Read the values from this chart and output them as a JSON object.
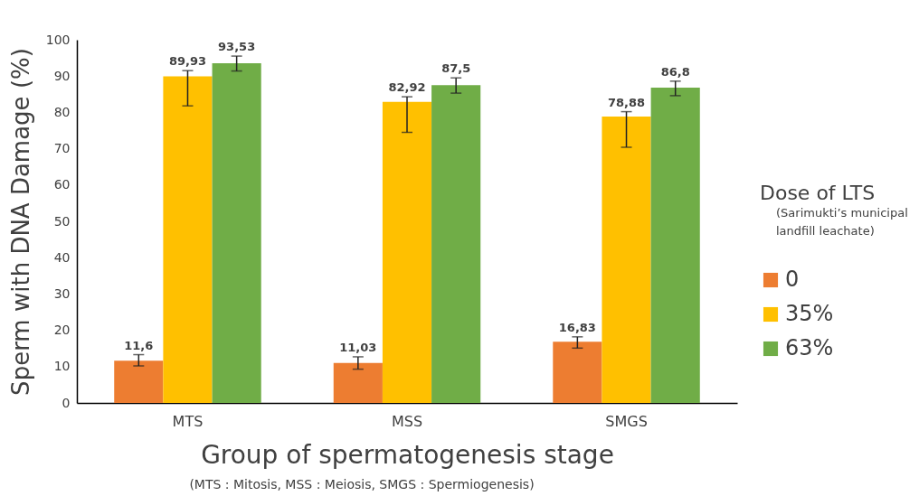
{
  "chart_data": {
    "type": "bar",
    "xlabel": "Group of spermatogenesis stage",
    "ylabel": "Sperm with DNA Damage (%)",
    "categories": [
      "MTS",
      "MSS",
      "SMGS"
    ],
    "series": [
      {
        "name": "0",
        "color": "#ed7d31",
        "values": [
          11.6,
          11.03,
          16.83
        ],
        "value_labels": [
          "11,6",
          "11,03",
          "16,83"
        ],
        "errors": [
          [
            10.2,
            13.3
          ],
          [
            9.3,
            12.7
          ],
          [
            15.1,
            18.2
          ]
        ]
      },
      {
        "name": "35%",
        "color": "#ffc000",
        "values": [
          89.93,
          82.92,
          78.88
        ],
        "value_labels": [
          "89,93",
          "82,92",
          "78,88"
        ],
        "errors": [
          [
            81.8,
            91.5
          ],
          [
            74.5,
            84.3
          ],
          [
            70.4,
            80.2
          ]
        ]
      },
      {
        "name": "63%",
        "color": "#70ad47",
        "values": [
          93.53,
          87.5,
          86.8
        ],
        "value_labels": [
          "93,53",
          "87,5",
          "86,8"
        ],
        "errors": [
          [
            91.4,
            95.5
          ],
          [
            85.3,
            89.5
          ],
          [
            84.6,
            88.6
          ]
        ]
      }
    ],
    "ylim": [
      0,
      100
    ],
    "yticks": [
      0,
      10,
      20,
      30,
      40,
      50,
      60,
      70,
      80,
      90,
      100
    ],
    "grid": false,
    "legend": "right",
    "legend_title": "Dose of LTS",
    "annotations": [
      "(Sarimukti’s municipal landfill leachate)",
      "(MTS : Mitosis, MSS : Meiosis, SMGS : Spermiogenesis)"
    ]
  }
}
